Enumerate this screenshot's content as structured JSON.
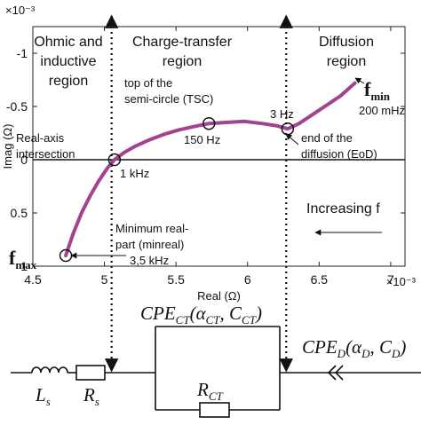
{
  "chart_data": {
    "type": "line",
    "x_label": "Real (Ω)",
    "y_label": "Imag (Ω)",
    "x_exponent": "×10⁻³",
    "y_exponent": "×10⁻³",
    "xlim": [
      4.5,
      7.1
    ],
    "ylim": [
      -1.25,
      1
    ],
    "xticks": [
      4.5,
      5,
      5.5,
      6,
      6.5,
      7
    ],
    "yticks": [
      -1,
      -0.5,
      0,
      0.5,
      1
    ],
    "y_reversed": true,
    "series": [
      {
        "color": "#a3428e",
        "x": [
          4.73,
          4.78,
          4.84,
          4.9,
          4.96,
          5.02,
          5.07,
          5.14,
          5.22,
          5.32,
          5.42,
          5.52,
          5.62,
          5.73,
          5.85,
          5.98,
          6.1,
          6.2,
          6.28,
          6.36,
          6.45,
          6.55,
          6.65,
          6.75
        ],
        "y": [
          0.9,
          0.7,
          0.5,
          0.34,
          0.2,
          0.08,
          0.0,
          -0.07,
          -0.13,
          -0.19,
          -0.24,
          -0.28,
          -0.31,
          -0.34,
          -0.35,
          -0.36,
          -0.34,
          -0.32,
          -0.29,
          -0.34,
          -0.42,
          -0.51,
          -0.6,
          -0.72
        ]
      }
    ],
    "markers": [
      {
        "x": 4.73,
        "y": 0.9
      },
      {
        "x": 5.07,
        "y": 0.0
      },
      {
        "x": 5.73,
        "y": -0.34
      },
      {
        "x": 6.28,
        "y": -0.29
      }
    ],
    "region_boundaries": [
      5.05,
      6.27
    ],
    "annotations": [
      {
        "lines": [
          "Ohmic and",
          "inductive",
          "region"
        ]
      },
      {
        "lines": [
          "Charge-transfer",
          "region"
        ]
      },
      {
        "lines": [
          "Diffusion",
          "region"
        ]
      },
      {
        "lines": [
          "top of the",
          "semi-circle (TSC)"
        ]
      },
      {
        "lines": [
          "150 Hz"
        ]
      },
      {
        "lines": [
          "3 Hz"
        ]
      },
      {
        "lines": [
          "end of the",
          "diffusion (EoD)"
        ]
      },
      {
        "lines": [
          "Real-axis",
          "intersection"
        ]
      },
      {
        "lines": [
          "1 kHz"
        ]
      },
      {
        "lines": [
          "Increasing f"
        ]
      },
      {
        "lines": [
          "Minimum real-",
          "part (minreal)"
        ]
      },
      {
        "lines": [
          "3,5 kHz"
        ]
      },
      {
        "text": "f",
        "subscript": "max"
      },
      {
        "text": "f",
        "subscript": "min"
      },
      {
        "lines": [
          "200 mHz"
        ]
      }
    ]
  },
  "circuit": {
    "inductor": [
      {
        "text": "L"
      },
      {
        "text": "s",
        "sub": true
      }
    ],
    "resistor": [
      {
        "text": "R"
      },
      {
        "text": "s",
        "sub": true
      }
    ],
    "charge_transfer_resistor": [
      {
        "text": "R"
      },
      {
        "text": "CT",
        "sub": true
      }
    ],
    "charge_transfer_cpe": [
      {
        "text": "CPE"
      },
      {
        "text": "CT",
        "sub": true
      },
      {
        "text": "(α"
      },
      {
        "text": "CT",
        "sub": true
      },
      {
        "text": ", C"
      },
      {
        "text": "CT",
        "sub": true
      },
      {
        "text": ")"
      }
    ],
    "diffusion_cpe": [
      {
        "text": "CPE"
      },
      {
        "text": "D",
        "sub": true
      },
      {
        "text": "(α"
      },
      {
        "text": "D",
        "sub": true
      },
      {
        "text": ", C"
      },
      {
        "text": "D",
        "sub": true
      },
      {
        "text": ")"
      }
    ]
  }
}
